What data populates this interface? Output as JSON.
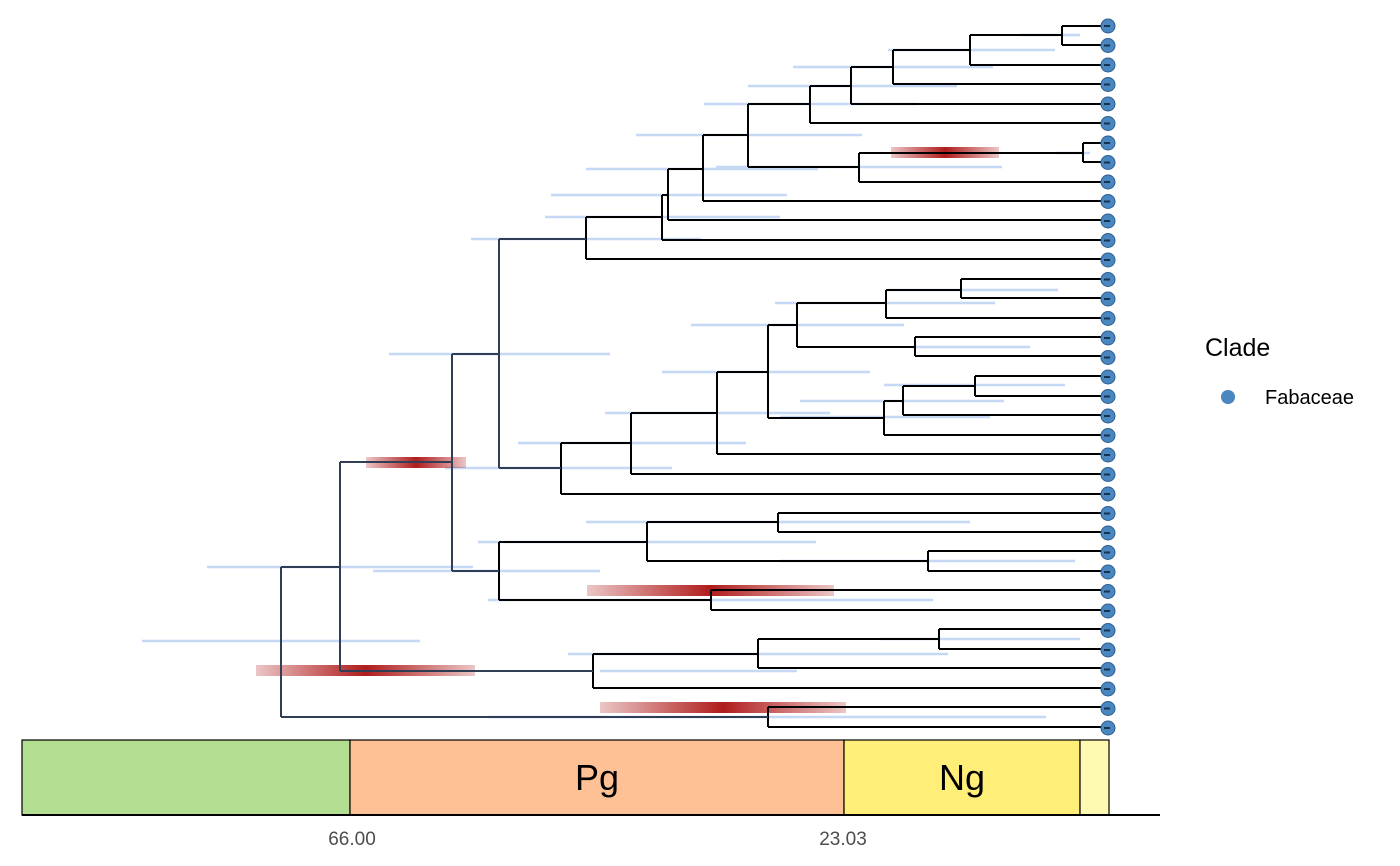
{
  "legend": {
    "title": "Clade",
    "items": [
      {
        "label": "Fabaceae",
        "color": "#4a86c0"
      }
    ]
  },
  "timescale": {
    "periods": [
      {
        "label": "",
        "color": "#b3de92"
      },
      {
        "label": "Pg",
        "color": "#fdc195"
      },
      {
        "label": "Ng",
        "color": "#ffee78"
      },
      {
        "label": "",
        "color": "#fefab2"
      }
    ],
    "ticks": [
      "66.00",
      "23.03"
    ]
  },
  "colors": {
    "branch": "#000000",
    "uncertainty_bar": "#c5d8f5",
    "highlight_bar": "#b01c1c",
    "tip": "#4a86c0"
  },
  "tip_count": 37
}
